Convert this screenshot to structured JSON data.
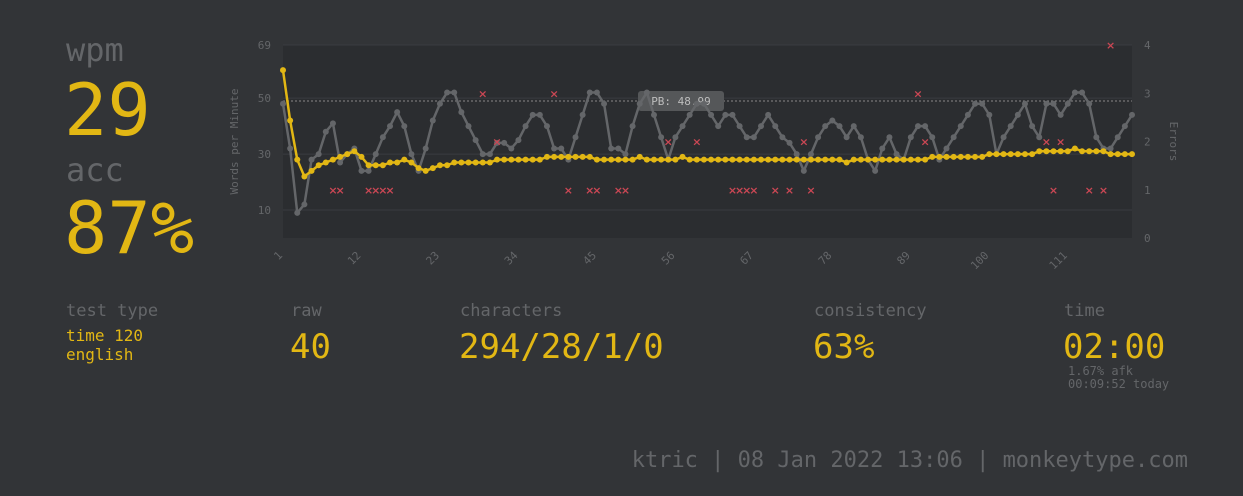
{
  "wpm": {
    "label": "wpm",
    "value": "29"
  },
  "acc": {
    "label": "acc",
    "value": "87%"
  },
  "stats": {
    "test_type": {
      "label": "test type",
      "line1": "time 120",
      "line2": "english"
    },
    "raw": {
      "label": "raw",
      "value": "40"
    },
    "characters": {
      "label": "characters",
      "value": "294/28/1/0"
    },
    "consistency": {
      "label": "consistency",
      "value": "63%"
    },
    "time": {
      "label": "time",
      "value": "02:00",
      "afk": "1.67% afk",
      "today": "00:09:52 today"
    }
  },
  "footer": "ktric | 08 Jan 2022 13:06 | monkeytype.com",
  "colors": {
    "background": "#323437",
    "accent": "#e2b714",
    "muted": "#646669",
    "raw_line": "#646669",
    "error": "#ca4754"
  },
  "chart_data": {
    "type": "line",
    "ylabel": "Words per Minute",
    "y2label": "Errors",
    "ylim": [
      0,
      69
    ],
    "y2lim": [
      0,
      4
    ],
    "y_ticks": [
      10,
      30,
      50,
      69
    ],
    "y2_ticks": [
      0,
      1,
      2,
      3,
      4
    ],
    "x_ticks": [
      1,
      12,
      23,
      34,
      45,
      56,
      67,
      78,
      89,
      100,
      111
    ],
    "xlim": [
      1,
      120
    ],
    "pb_label": "PB: 48.99",
    "pb_value": 48.99,
    "series": [
      {
        "name": "wpm",
        "values": [
          60,
          42,
          28,
          22,
          24,
          26,
          27,
          28,
          29,
          30,
          31,
          29,
          26,
          26,
          26,
          27,
          27,
          28,
          27,
          25,
          24,
          25,
          26,
          26,
          27,
          27,
          27,
          27,
          27,
          27,
          28,
          28,
          28,
          28,
          28,
          28,
          28,
          29,
          29,
          29,
          29,
          29,
          29,
          29,
          28,
          28,
          28,
          28,
          28,
          28,
          29,
          28,
          28,
          28,
          28,
          28,
          29,
          28,
          28,
          28,
          28,
          28,
          28,
          28,
          28,
          28,
          28,
          28,
          28,
          28,
          28,
          28,
          28,
          28,
          28,
          28,
          28,
          28,
          28,
          27,
          28,
          28,
          28,
          28,
          28,
          28,
          28,
          28,
          28,
          28,
          28,
          29,
          29,
          29,
          29,
          29,
          29,
          29,
          29,
          30,
          30,
          30,
          30,
          30,
          30,
          30,
          31,
          31,
          31,
          31,
          31,
          32,
          31,
          31,
          31,
          31,
          30,
          30,
          30,
          30
        ]
      },
      {
        "name": "raw",
        "values": [
          48,
          32,
          9,
          12,
          28,
          30,
          38,
          41,
          27,
          30,
          32,
          24,
          24,
          30,
          36,
          40,
          45,
          40,
          30,
          24,
          32,
          42,
          48,
          52,
          52,
          45,
          40,
          35,
          30,
          30,
          34,
          34,
          32,
          35,
          40,
          44,
          44,
          40,
          32,
          32,
          28,
          36,
          44,
          52,
          52,
          48,
          32,
          32,
          30,
          40,
          48,
          52,
          44,
          36,
          28,
          36,
          40,
          44,
          48,
          48,
          44,
          40,
          44,
          44,
          40,
          36,
          36,
          40,
          44,
          40,
          36,
          34,
          30,
          24,
          30,
          36,
          40,
          42,
          40,
          36,
          40,
          36,
          28,
          24,
          32,
          36,
          30,
          28,
          36,
          40,
          40,
          36,
          28,
          32,
          36,
          40,
          44,
          48,
          48,
          44,
          30,
          36,
          40,
          44,
          48,
          40,
          36,
          48,
          48,
          44,
          48,
          52,
          52,
          48,
          36,
          32,
          32,
          36,
          40,
          44
        ]
      },
      {
        "name": "errors",
        "values": [
          {
            "x": 8,
            "y": 1
          },
          {
            "x": 9,
            "y": 1
          },
          {
            "x": 13,
            "y": 1
          },
          {
            "x": 14,
            "y": 1
          },
          {
            "x": 15,
            "y": 1
          },
          {
            "x": 16,
            "y": 1
          },
          {
            "x": 29,
            "y": 3
          },
          {
            "x": 31,
            "y": 2
          },
          {
            "x": 39,
            "y": 3
          },
          {
            "x": 41,
            "y": 1
          },
          {
            "x": 44,
            "y": 1
          },
          {
            "x": 45,
            "y": 1
          },
          {
            "x": 48,
            "y": 1
          },
          {
            "x": 49,
            "y": 1
          },
          {
            "x": 55,
            "y": 2
          },
          {
            "x": 59,
            "y": 2
          },
          {
            "x": 64,
            "y": 1
          },
          {
            "x": 65,
            "y": 1
          },
          {
            "x": 66,
            "y": 1
          },
          {
            "x": 67,
            "y": 1
          },
          {
            "x": 70,
            "y": 1
          },
          {
            "x": 72,
            "y": 1
          },
          {
            "x": 74,
            "y": 2
          },
          {
            "x": 75,
            "y": 1
          },
          {
            "x": 90,
            "y": 3
          },
          {
            "x": 91,
            "y": 2
          },
          {
            "x": 108,
            "y": 2
          },
          {
            "x": 109,
            "y": 1
          },
          {
            "x": 110,
            "y": 2
          },
          {
            "x": 114,
            "y": 1
          },
          {
            "x": 116,
            "y": 1
          },
          {
            "x": 117,
            "y": 4
          }
        ]
      }
    ]
  }
}
